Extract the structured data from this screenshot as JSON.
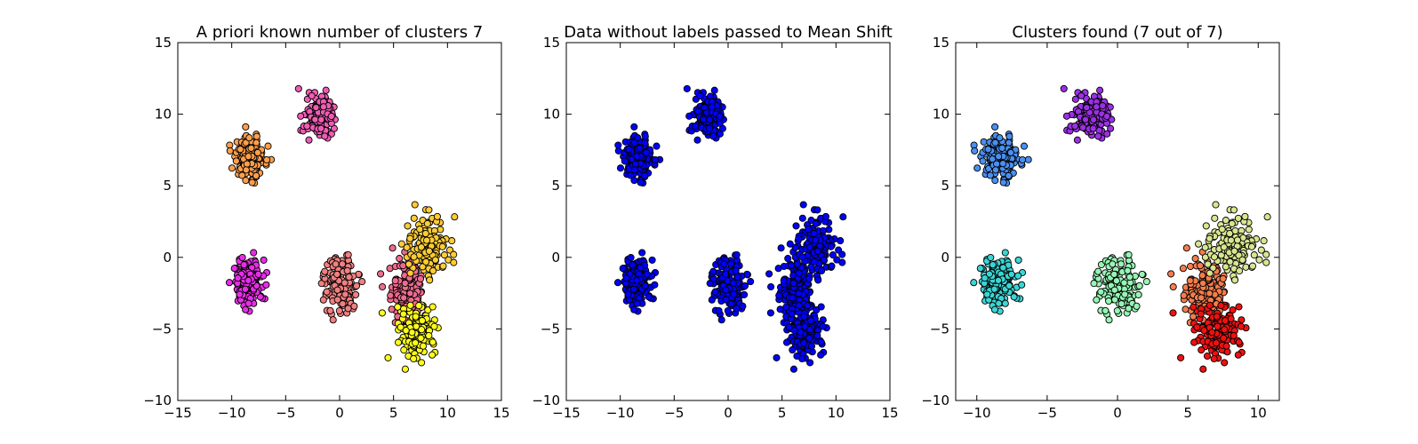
{
  "chart_data": [
    {
      "type": "scatter",
      "title": "A priori known number of clusters 7",
      "xlim": [
        -15,
        15
      ],
      "ylim": [
        -10,
        15
      ],
      "xticks": [
        -15,
        -10,
        -5,
        0,
        5,
        10,
        15
      ],
      "yticks": [
        -10,
        -5,
        0,
        5,
        10,
        15
      ],
      "grid": false,
      "point_edge_color": "#000000",
      "clusters": [
        {
          "color": "#ff9f4a",
          "center": [
            -8.3,
            7.0
          ],
          "spread": [
            0.75,
            0.7
          ],
          "count": 150
        },
        {
          "color": "#f05cb5",
          "center": [
            -2.0,
            9.8
          ],
          "spread": [
            0.65,
            0.75
          ],
          "count": 150
        },
        {
          "color": "#e82de8",
          "center": [
            -8.5,
            -1.8
          ],
          "spread": [
            0.7,
            0.85
          ],
          "count": 150
        },
        {
          "color": "#f08080",
          "center": [
            0.0,
            -2.0
          ],
          "spread": [
            0.85,
            0.9
          ],
          "count": 150
        },
        {
          "color": "#ef6b8e",
          "center": [
            6.2,
            -2.4
          ],
          "spread": [
            0.9,
            1.0
          ],
          "count": 150
        },
        {
          "color": "#ffcc33",
          "center": [
            8.0,
            0.8
          ],
          "spread": [
            0.9,
            1.0
          ],
          "count": 150
        },
        {
          "color": "#ffff1a",
          "center": [
            7.0,
            -5.2
          ],
          "spread": [
            0.9,
            1.0
          ],
          "count": 150
        }
      ]
    },
    {
      "type": "scatter",
      "title": "Data without labels passed to Mean Shift",
      "xlim": [
        -15,
        15
      ],
      "ylim": [
        -10,
        15
      ],
      "xticks": [
        -15,
        -10,
        -5,
        0,
        5,
        10,
        15
      ],
      "yticks": [
        -10,
        -5,
        0,
        5,
        10,
        15
      ],
      "grid": false,
      "point_edge_color": "#000000",
      "clusters": [
        {
          "color": "#0000ff",
          "center": [
            -8.3,
            7.0
          ],
          "spread": [
            0.75,
            0.7
          ],
          "count": 150
        },
        {
          "color": "#0000ff",
          "center": [
            -2.0,
            9.8
          ],
          "spread": [
            0.65,
            0.75
          ],
          "count": 150
        },
        {
          "color": "#0000ff",
          "center": [
            -8.5,
            -1.8
          ],
          "spread": [
            0.7,
            0.85
          ],
          "count": 150
        },
        {
          "color": "#0000ff",
          "center": [
            0.0,
            -2.0
          ],
          "spread": [
            0.85,
            0.9
          ],
          "count": 150
        },
        {
          "color": "#0000ff",
          "center": [
            6.2,
            -2.4
          ],
          "spread": [
            0.9,
            1.0
          ],
          "count": 150
        },
        {
          "color": "#0000ff",
          "center": [
            8.0,
            0.8
          ],
          "spread": [
            0.9,
            1.0
          ],
          "count": 150
        },
        {
          "color": "#0000ff",
          "center": [
            7.0,
            -5.2
          ],
          "spread": [
            0.9,
            1.0
          ],
          "count": 150
        }
      ]
    },
    {
      "type": "scatter",
      "title": "Clusters found (7 out of 7)",
      "xlim": [
        -11.5,
        11.5
      ],
      "ylim": [
        -10,
        15
      ],
      "xticks": [
        -10,
        -5,
        0,
        5,
        10
      ],
      "yticks": [
        -10,
        -5,
        0,
        5,
        10,
        15
      ],
      "grid": false,
      "point_edge_color": "#000000",
      "clusters": [
        {
          "color": "#4a8ff0",
          "center": [
            -8.3,
            7.0
          ],
          "spread": [
            0.75,
            0.7
          ],
          "count": 150
        },
        {
          "color": "#9b30e6",
          "center": [
            -2.0,
            9.8
          ],
          "spread": [
            0.65,
            0.75
          ],
          "count": 150
        },
        {
          "color": "#3ad6d6",
          "center": [
            -8.5,
            -1.8
          ],
          "spread": [
            0.7,
            0.85
          ],
          "count": 150
        },
        {
          "color": "#96f5b4",
          "center": [
            0.0,
            -2.0
          ],
          "spread": [
            0.85,
            0.9
          ],
          "count": 150
        },
        {
          "color": "#f57d4d",
          "center": [
            6.2,
            -2.4
          ],
          "spread": [
            0.9,
            1.0
          ],
          "count": 150
        },
        {
          "color": "#d8e690",
          "center": [
            8.0,
            0.8
          ],
          "spread": [
            0.9,
            1.0
          ],
          "count": 150
        },
        {
          "color": "#f01010",
          "center": [
            7.0,
            -5.2
          ],
          "spread": [
            0.9,
            1.0
          ],
          "count": 150
        }
      ]
    }
  ]
}
